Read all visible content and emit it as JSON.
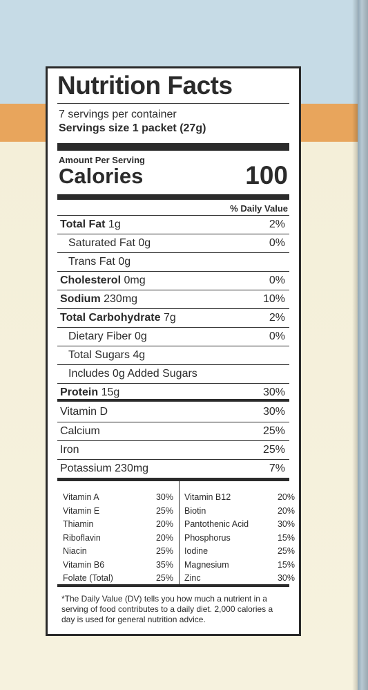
{
  "label": {
    "title": "Nutrition Facts",
    "servings_per_container": "7 servings per container",
    "serving_size": "Servings size 1 packet (27g)",
    "amount_per_serving": "Amount Per Serving",
    "calories_label": "Calories",
    "calories_value": "100",
    "daily_value_header": "% Daily Value",
    "nutrients": [
      {
        "bold": "Total Fat",
        "amount": " 1g",
        "pct": "2%"
      },
      {
        "bold": "",
        "amount": "Saturated Fat 0g",
        "pct": "0%"
      },
      {
        "bold": "",
        "amount": "Trans Fat 0g",
        "pct": ""
      },
      {
        "bold": "Cholesterol",
        "amount": " 0mg",
        "pct": "0%"
      },
      {
        "bold": "Sodium",
        "amount": " 230mg",
        "pct": "10%"
      },
      {
        "bold": "Total Carbohydrate",
        "amount": " 7g",
        "pct": "2%"
      },
      {
        "bold": "",
        "amount": "Dietary Fiber 0g",
        "pct": "0%"
      },
      {
        "bold": "",
        "amount": "Total Sugars 4g",
        "pct": ""
      },
      {
        "bold": "",
        "amount": "Includes 0g Added Sugars",
        "pct": ""
      },
      {
        "bold": "Protein",
        "amount": " 15g",
        "pct": "30%"
      }
    ],
    "vitamins_main": [
      {
        "name": "Vitamin D",
        "pct": "30%"
      },
      {
        "name": "Calcium",
        "pct": "25%"
      },
      {
        "name": "Iron",
        "pct": "25%"
      },
      {
        "name": "Potassium 230mg",
        "pct": "7%"
      }
    ],
    "vitamins_left": [
      {
        "name": "Vitamin A",
        "pct": "30%"
      },
      {
        "name": "Vitamin E",
        "pct": "25%"
      },
      {
        "name": "Thiamin",
        "pct": "20%"
      },
      {
        "name": "Riboflavin",
        "pct": "20%"
      },
      {
        "name": "Niacin",
        "pct": "25%"
      },
      {
        "name": "Vitamin B6",
        "pct": "35%"
      },
      {
        "name": "Folate (Total)",
        "pct": "25%"
      }
    ],
    "vitamins_right": [
      {
        "name": "Vitamin B12",
        "pct": "20%"
      },
      {
        "name": "Biotin",
        "pct": "20%"
      },
      {
        "name": "Pantothenic Acid",
        "pct": "30%"
      },
      {
        "name": "Phosphorus",
        "pct": "15%"
      },
      {
        "name": "Iodine",
        "pct": "25%"
      },
      {
        "name": "Magnesium",
        "pct": "15%"
      },
      {
        "name": "Zinc",
        "pct": "30%"
      }
    ],
    "footnote": "*The Daily Value (DV) tells you how much a nutrient in a serving of food contributes to a daily diet. 2,000 calories a day is used for general nutrition advice."
  }
}
